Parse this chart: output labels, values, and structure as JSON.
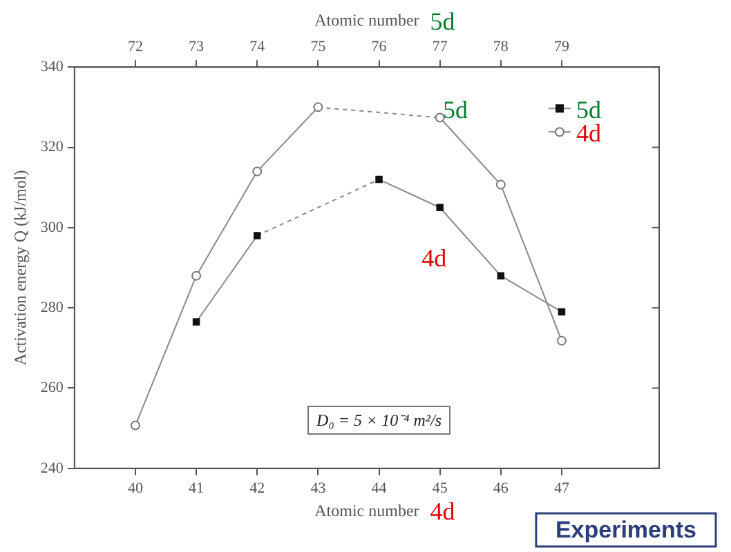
{
  "chart_data": {
    "type": "line",
    "xlabel": "Atomic number",
    "x2label": "Atomic number",
    "ylabel": "Activation energy Q (kJ/mol)",
    "x": [
      40,
      41,
      42,
      43,
      44,
      45,
      46,
      47
    ],
    "series": [
      {
        "name": "5d",
        "color": "#111111",
        "marker": "square",
        "values": [
          null,
          276.5,
          298,
          null,
          312,
          305,
          288,
          279
        ]
      },
      {
        "name": "4d",
        "color": "#777777",
        "marker": "circle",
        "values": [
          250.7,
          288,
          314,
          330,
          null,
          327.4,
          310.7,
          271.8
        ]
      }
    ],
    "xlim": [
      39,
      48.6
    ],
    "xticks": [
      40,
      41,
      42,
      43,
      44,
      45,
      46,
      47
    ],
    "x2lim": [
      71,
      80.6
    ],
    "x2ticks": [
      72,
      73,
      74,
      75,
      76,
      77,
      78,
      79
    ],
    "ylim": [
      240,
      340
    ],
    "yticks": [
      240,
      260,
      280,
      300,
      320,
      340
    ],
    "grid": false,
    "legend": "top right",
    "annotations": [
      "5d",
      "4d",
      "5d",
      "4d",
      "D₀ = 5 × 10⁻⁴ m²/s",
      "Experiments"
    ]
  }
}
